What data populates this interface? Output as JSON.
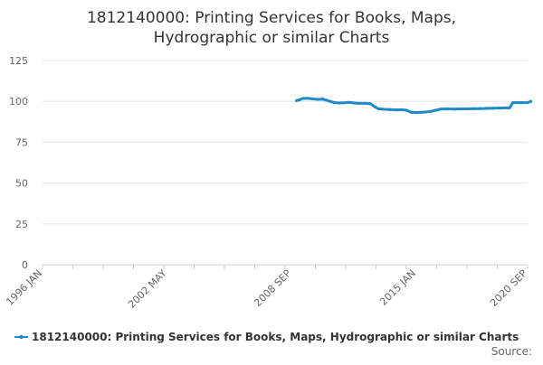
{
  "chart_data": {
    "type": "line",
    "title_lines": [
      "1812140000: Printing Services for Books, Maps,",
      "Hydrographic or similar Charts"
    ],
    "xlabel": "",
    "ylabel": "",
    "x_tick_labels": [
      "1996 JAN",
      "2002 MAY",
      "2008 SEP",
      "2015 JAN",
      "2020 SEP"
    ],
    "y_ticks": [
      0,
      25,
      50,
      75,
      100,
      125
    ],
    "ylim": [
      0,
      125
    ],
    "grid": "horizontal",
    "legend_position": "bottom",
    "source_label": "Source:",
    "colors": {
      "series": "#1f8bc9",
      "grid": "#e6e6e6",
      "axis": "#cccccc"
    },
    "series": [
      {
        "name": "1812140000: Printing Services for Books, Maps, Hydrographic or similar Charts",
        "points": [
          [
            "2008-12",
            100.5
          ],
          [
            "2009-02",
            101.0
          ],
          [
            "2009-04",
            101.8
          ],
          [
            "2009-07",
            101.8
          ],
          [
            "2009-10",
            101.5
          ],
          [
            "2010-01",
            101.2
          ],
          [
            "2010-04",
            101.4
          ],
          [
            "2010-06",
            100.8
          ],
          [
            "2010-08",
            100.1
          ],
          [
            "2010-11",
            99.3
          ],
          [
            "2011-02",
            99.0
          ],
          [
            "2011-05",
            99.1
          ],
          [
            "2011-08",
            99.4
          ],
          [
            "2011-11",
            99.0
          ],
          [
            "2012-02",
            98.8
          ],
          [
            "2012-06",
            98.8
          ],
          [
            "2012-09",
            98.6
          ],
          [
            "2012-12",
            96.5
          ],
          [
            "2013-02",
            95.4
          ],
          [
            "2013-05",
            95.2
          ],
          [
            "2013-09",
            95.0
          ],
          [
            "2014-01",
            94.8
          ],
          [
            "2014-04",
            94.9
          ],
          [
            "2014-07",
            94.6
          ],
          [
            "2014-10",
            93.3
          ],
          [
            "2015-01",
            93.2
          ],
          [
            "2015-04",
            93.3
          ],
          [
            "2015-07",
            93.5
          ],
          [
            "2015-10",
            93.9
          ],
          [
            "2016-01",
            94.6
          ],
          [
            "2016-04",
            95.3
          ],
          [
            "2016-08",
            95.4
          ],
          [
            "2016-12",
            95.3
          ],
          [
            "2017-04",
            95.4
          ],
          [
            "2017-08",
            95.4
          ],
          [
            "2017-12",
            95.5
          ],
          [
            "2018-04",
            95.6
          ],
          [
            "2018-08",
            95.7
          ],
          [
            "2018-12",
            95.8
          ],
          [
            "2019-04",
            95.9
          ],
          [
            "2019-08",
            96.0
          ],
          [
            "2019-10",
            96.0
          ],
          [
            "2019-12",
            99.2
          ],
          [
            "2020-03",
            99.3
          ],
          [
            "2020-06",
            99.2
          ],
          [
            "2020-09",
            99.3
          ],
          [
            "2020-11",
            100.0
          ]
        ]
      }
    ]
  }
}
